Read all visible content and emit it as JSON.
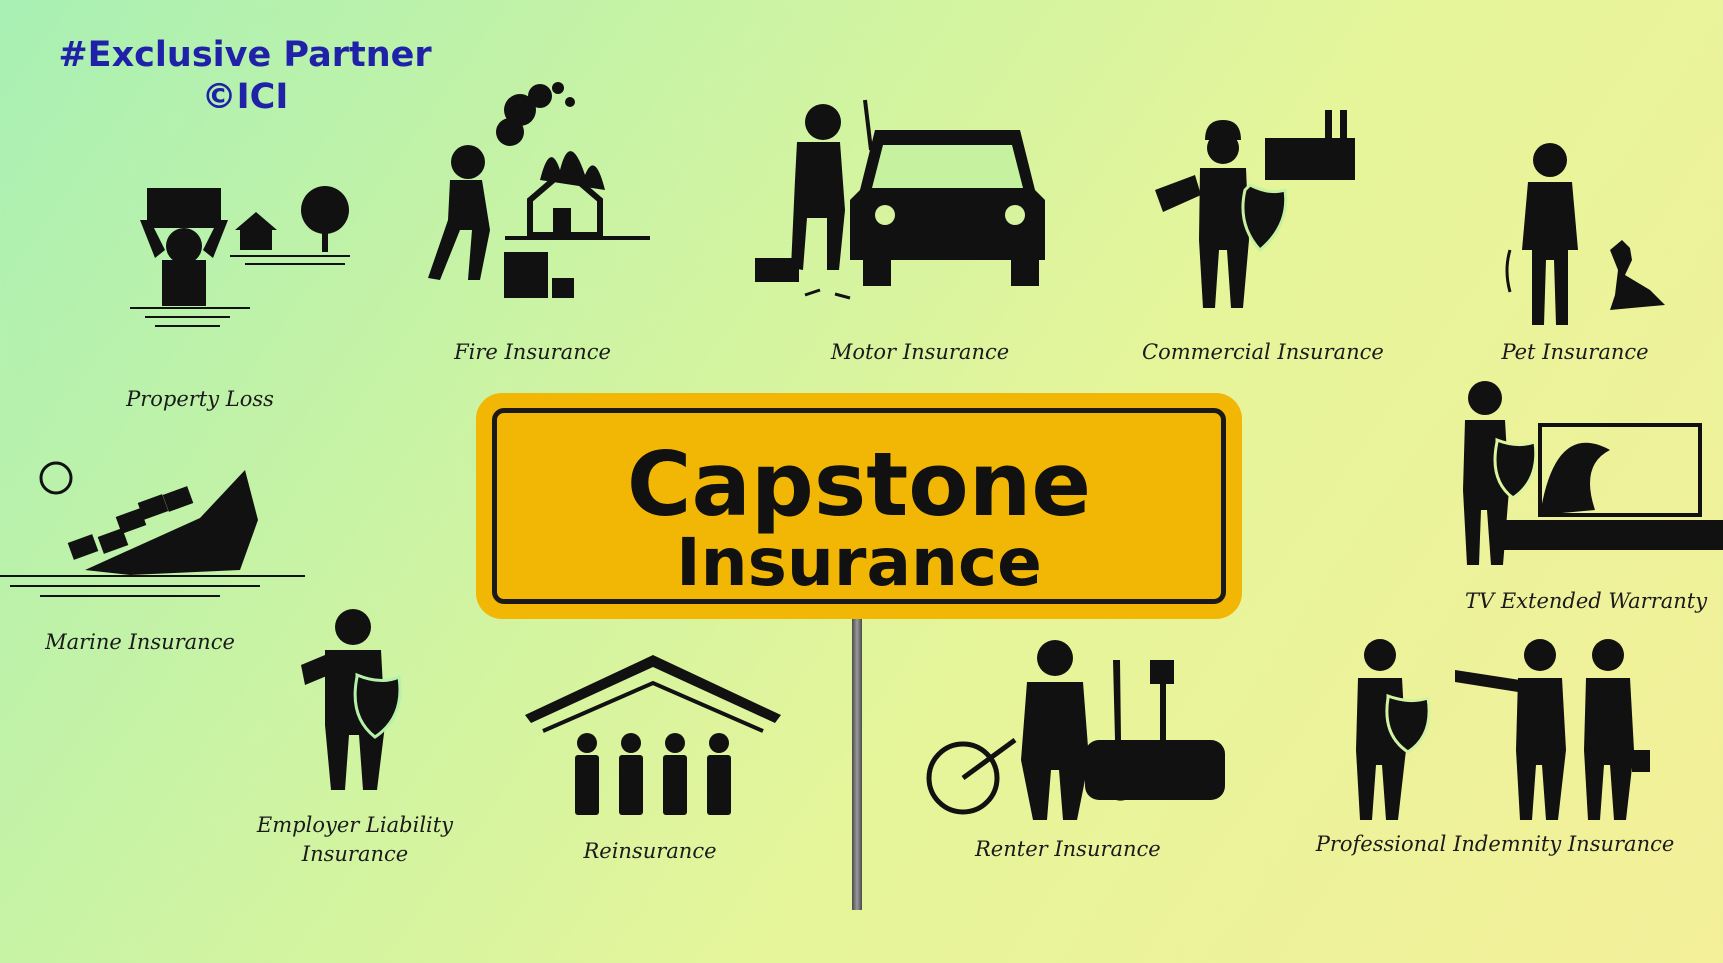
{
  "watermark": {
    "line1": "#Exclusive Partner",
    "line2": "©ICI"
  },
  "sign": {
    "title": "Capstone",
    "subtitle": "Insurance"
  },
  "items": {
    "property_loss": "Property Loss",
    "fire": "Fire Insurance",
    "motor": "Motor Insurance",
    "commercial": "Commercial Insurance",
    "pet": "Pet Insurance",
    "tv_warranty": "TV Extended Warranty",
    "marine": "Marine Insurance",
    "employer": "Employer Liability\nInsurance",
    "reinsurance": "Reinsurance",
    "renter": "Renter Insurance",
    "professional": "Professional Indemnity Insurance"
  },
  "colors": {
    "sign": "#f2b705",
    "ink": "#111111",
    "watermark": "#1f22a8"
  }
}
